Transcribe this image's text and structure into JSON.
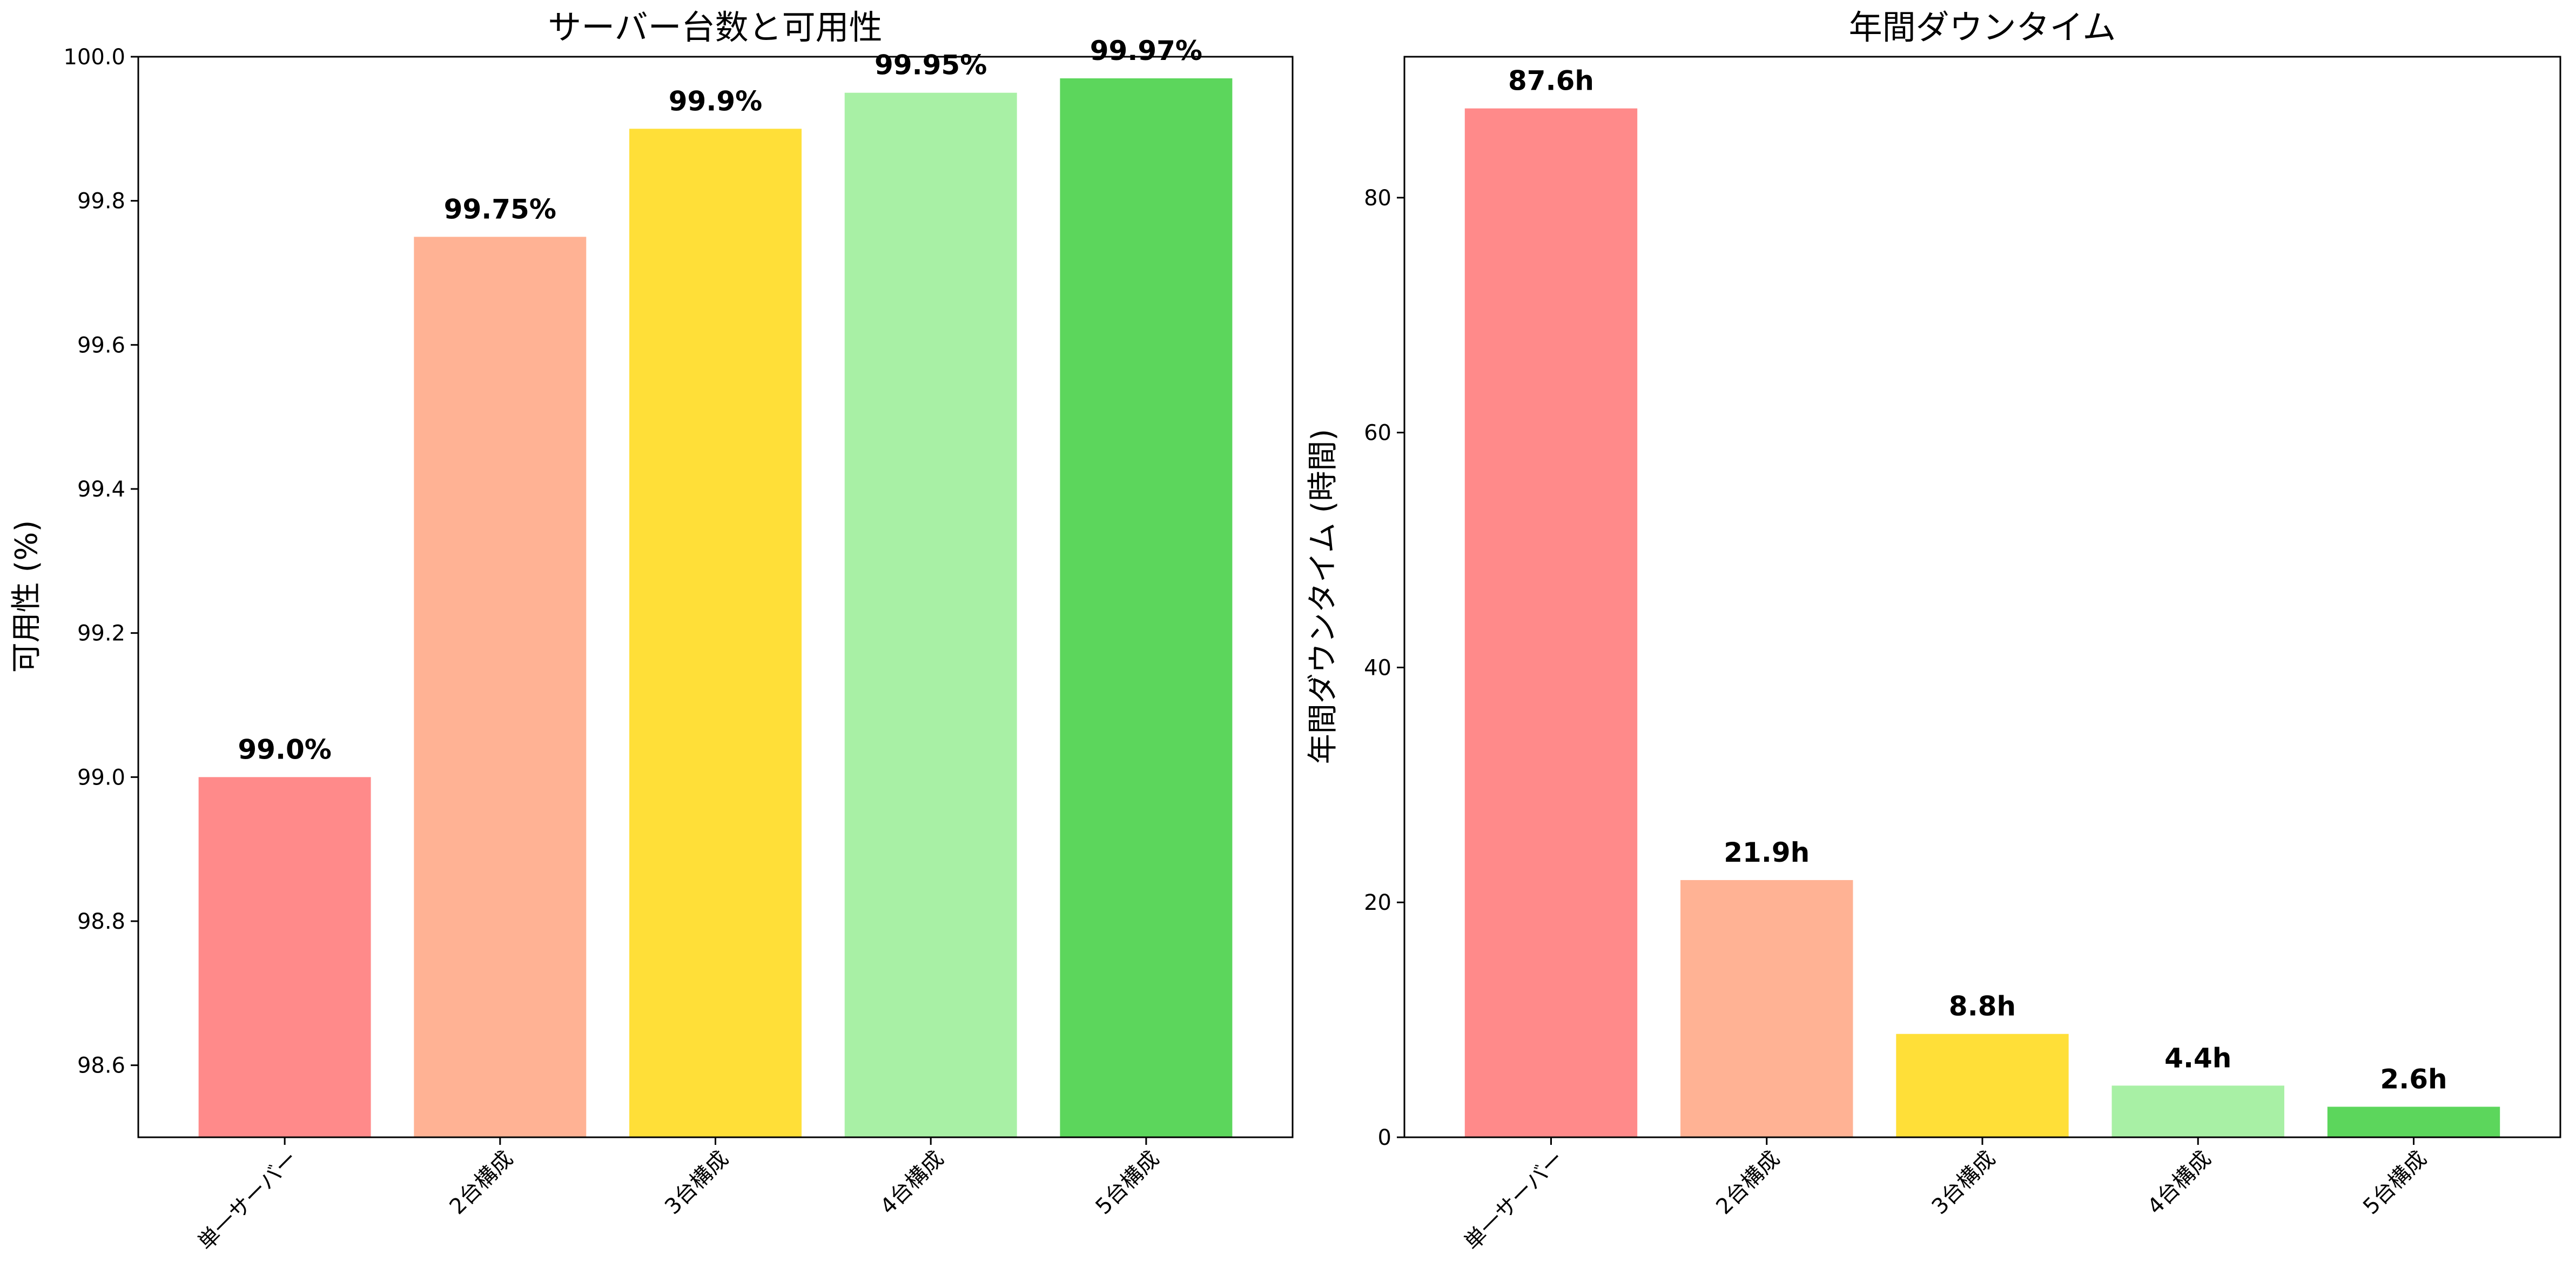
{
  "chart_data": [
    {
      "type": "bar",
      "title": "サーバー台数と可用性",
      "xlabel": "",
      "ylabel": "可用性 (%)",
      "categories": [
        "単一サーバー",
        "2台構成",
        "3台構成",
        "4台構成",
        "5台構成"
      ],
      "values": [
        99.0,
        99.75,
        99.9,
        99.95,
        99.97
      ],
      "data_labels": [
        "99.0%",
        "99.75%",
        "99.9%",
        "99.95%",
        "99.97%"
      ],
      "colors": [
        "#ff8a8a",
        "#ffb294",
        "#ffdf38",
        "#a8f0a5",
        "#5cd65c"
      ],
      "ylim": [
        98.5,
        100.0
      ],
      "yticks": [
        98.6,
        98.8,
        99.0,
        99.2,
        99.4,
        99.6,
        99.8,
        100.0
      ],
      "ytick_labels": [
        "98.6",
        "98.8",
        "99.0",
        "99.2",
        "99.4",
        "99.6",
        "99.8",
        "100.0"
      ],
      "grid": false
    },
    {
      "type": "bar",
      "title": "年間ダウンタイム",
      "xlabel": "",
      "ylabel": "年間ダウンタイム (時間)",
      "categories": [
        "単一サーバー",
        "2台構成",
        "3台構成",
        "4台構成",
        "5台構成"
      ],
      "values": [
        87.6,
        21.9,
        8.8,
        4.4,
        2.6
      ],
      "data_labels": [
        "87.6h",
        "21.9h",
        "8.8h",
        "4.4h",
        "2.6h"
      ],
      "colors": [
        "#ff8a8a",
        "#ffb294",
        "#ffdf38",
        "#a8f0a5",
        "#5cd65c"
      ],
      "ylim": [
        0,
        92
      ],
      "yticks": [
        0,
        20,
        40,
        60,
        80
      ],
      "ytick_labels": [
        "0",
        "20",
        "40",
        "60",
        "80"
      ],
      "grid": false
    }
  ]
}
